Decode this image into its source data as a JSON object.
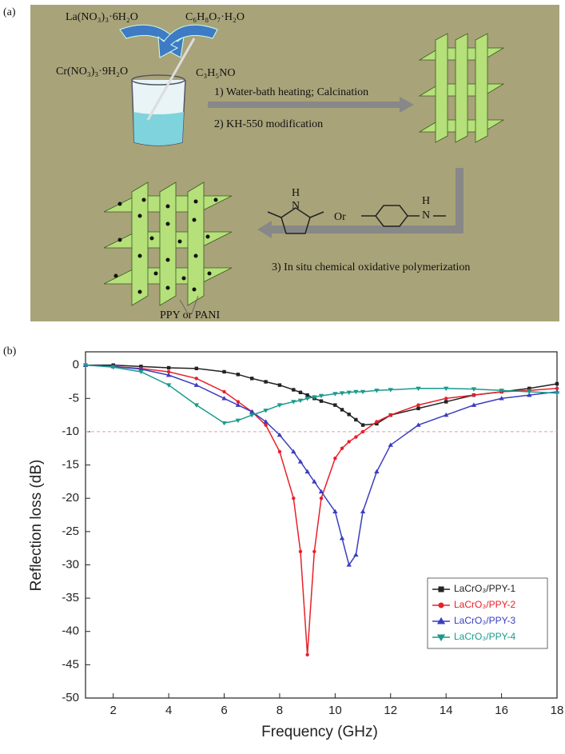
{
  "panel_labels": [
    "(a)",
    "(b)"
  ],
  "diagram": {
    "reagents": [
      "La(NO₃)₃·6H₂O",
      "C₆H₈O₇·H₂O",
      "Cr(NO₃)₃·9H₂O",
      "C₃H₅NO"
    ],
    "steps": [
      "1) Water-bath heating;  Calcination",
      "2) KH-550 modification",
      "3) In situ chemical oxidative polymerization"
    ],
    "pyrrole_atoms": [
      "H",
      "N"
    ],
    "connector": "Or",
    "aniline_atoms": [
      "H",
      "N"
    ],
    "product_label": "PPY or PANI"
  },
  "chart_data": {
    "type": "line",
    "xlabel": "Frequency (GHz)",
    "ylabel": "Reflection loss (dB)",
    "x": [
      1,
      2,
      3,
      4,
      5,
      6,
      6.5,
      7,
      7.5,
      8,
      8.5,
      8.75,
      9,
      9.25,
      9.5,
      10,
      10.25,
      10.5,
      10.75,
      11,
      11.5,
      12,
      13,
      14,
      15,
      16,
      17,
      18
    ],
    "series": [
      {
        "name": "LaCrO₃/PPY-1",
        "color": "#222222",
        "marker": "square",
        "values": [
          0,
          0,
          -0.2,
          -0.4,
          -0.5,
          -1,
          -1.4,
          -2,
          -2.5,
          -3,
          -3.7,
          -4.1,
          -4.5,
          -5,
          -5.4,
          -6,
          -6.7,
          -7.4,
          -8.2,
          -9,
          -8.8,
          -7.5,
          -6.5,
          -5.5,
          -4.5,
          -4,
          -3.5,
          -2.8
        ]
      },
      {
        "name": "LaCrO₃/PPY-2",
        "color": "#e8202a",
        "marker": "circle",
        "values": [
          0,
          -0.2,
          -0.5,
          -1,
          -2,
          -4,
          -5.5,
          -7,
          -9,
          -13,
          -20,
          -28,
          -43.5,
          -28,
          -20,
          -14,
          -12.5,
          -11.5,
          -10.8,
          -10,
          -8.5,
          -7.5,
          -6,
          -5,
          -4.5,
          -4,
          -3.8,
          -3.5
        ]
      },
      {
        "name": "LaCrO₃/PPY-3",
        "color": "#3a3dc0",
        "marker": "triangle",
        "values": [
          0,
          -0.2,
          -0.6,
          -1.5,
          -3,
          -5,
          -6,
          -7,
          -8.5,
          -10.5,
          -13,
          -14.5,
          -16,
          -17.5,
          -19,
          -22,
          -26,
          -30,
          -28.5,
          -22,
          -16,
          -12,
          -9,
          -7.5,
          -6,
          -5,
          -4.5,
          -4
        ]
      },
      {
        "name": "LaCrO₃/PPY-4",
        "color": "#1a9a8c",
        "marker": "triangle-down",
        "values": [
          0,
          -0.3,
          -1,
          -3,
          -6,
          -8.7,
          -8.3,
          -7.5,
          -6.8,
          -6,
          -5.5,
          -5.3,
          -5,
          -4.8,
          -4.6,
          -4.3,
          -4.2,
          -4.1,
          -4,
          -4,
          -3.8,
          -3.7,
          -3.5,
          -3.5,
          -3.6,
          -3.8,
          -4,
          -4.2
        ]
      }
    ],
    "reference_line": -10,
    "reference_color": "#e79aa8",
    "xlim": [
      1,
      18
    ],
    "xticks": [
      2,
      4,
      6,
      8,
      10,
      12,
      14,
      16,
      18
    ],
    "ylim": [
      -50,
      2
    ],
    "yticks": [
      0,
      -5,
      -10,
      -15,
      -20,
      -25,
      -30,
      -35,
      -40,
      -45,
      -50
    ],
    "legend": "lower-right"
  }
}
